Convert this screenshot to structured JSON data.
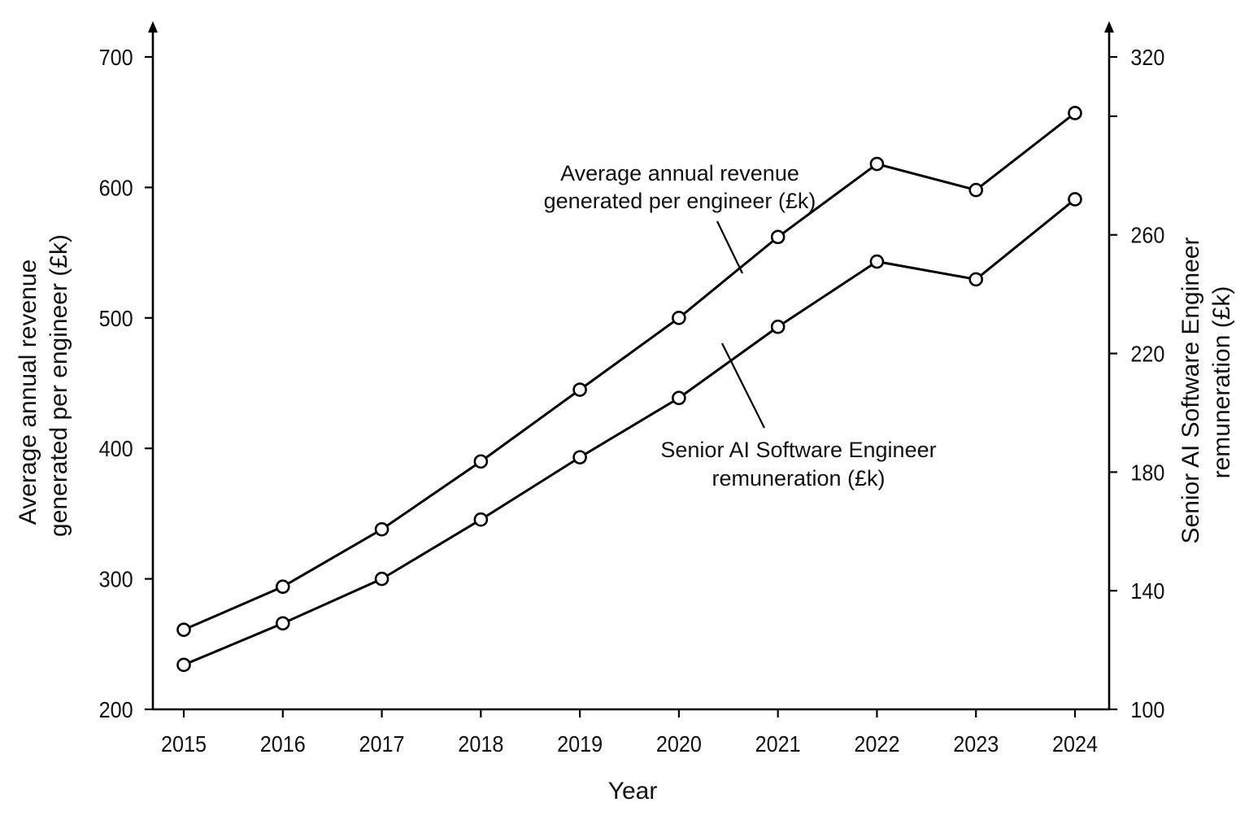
{
  "chart_data": {
    "type": "line",
    "title": "",
    "xlabel": "Year",
    "ylabel_left": [
      "Average annual revenue",
      "generated per engineer (£k)"
    ],
    "ylabel_right": [
      "Senior AI Software Engineer",
      "remuneration (£k)"
    ],
    "categories": [
      "2015",
      "2016",
      "2017",
      "2018",
      "2019",
      "2020",
      "2021",
      "2022",
      "2023",
      "2024"
    ],
    "y_left": {
      "range": [
        200,
        700
      ],
      "ticks": [
        200,
        300,
        400,
        500,
        600,
        700
      ]
    },
    "y_right": {
      "range": [
        100,
        320
      ],
      "ticks": [
        100,
        140,
        180,
        220,
        260,
        300,
        320
      ]
    },
    "series": [
      {
        "name": "Average annual revenue generated per engineer (£k)",
        "axis": "left",
        "values": [
          261,
          294,
          338,
          390,
          445,
          500,
          562,
          618,
          598,
          657
        ]
      },
      {
        "name": "Senior AI Software Engineer remuneration (£k)",
        "axis": "right",
        "values": [
          115,
          129,
          144,
          164,
          185,
          205,
          229,
          251,
          245,
          272
        ]
      }
    ],
    "annotations": [
      {
        "lines": [
          "Average annual revenue",
          "generated per engineer (£k)"
        ],
        "points_to_series": 0
      },
      {
        "lines": [
          "Senior AI Software Engineer",
          "remuneration (£k)"
        ],
        "points_to_series": 1
      }
    ],
    "grid": false,
    "legend": "none (inline annotations)"
  }
}
